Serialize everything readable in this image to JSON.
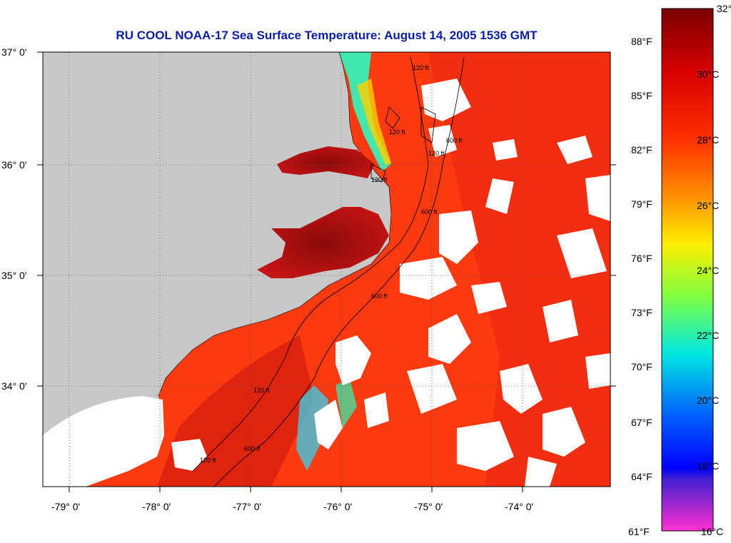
{
  "title": "RU COOL  NOAA-17  Sea Surface Temperature:  August 14, 2005 1536 GMT",
  "lat_labels": [
    "37° 0'",
    "36° 0'",
    "35° 0'",
    "34° 0'"
  ],
  "lon_labels": [
    "-79° 0'",
    "-78° 0'",
    "-77° 0'",
    "-76° 0'",
    "-75° 0'",
    "-74° 0'"
  ],
  "colorbar": {
    "celsius": [
      "32°C",
      "30°C",
      "28°C",
      "26°C",
      "24°C",
      "22°C",
      "20°C",
      "18°C",
      "16°C"
    ],
    "fahrenheit": [
      "88°F",
      "85°F",
      "82°F",
      "79°F",
      "76°F",
      "73°F",
      "70°F",
      "67°F",
      "64°F",
      "61°F"
    ]
  },
  "contour_labels": [
    "120 ft",
    "120 ft",
    "600 ft",
    "120 ft",
    "120 ft",
    "600 ft",
    "600 ft",
    "120 ft",
    "600 ft",
    "120 ft"
  ],
  "colors": {
    "land": "#c8c8c8",
    "cloud": "#ffffff",
    "ocean_warm": "#ff3a10",
    "ocean_hot": "#c01010",
    "cool_water": "#40e8b0",
    "title": "#0a1e9e"
  }
}
